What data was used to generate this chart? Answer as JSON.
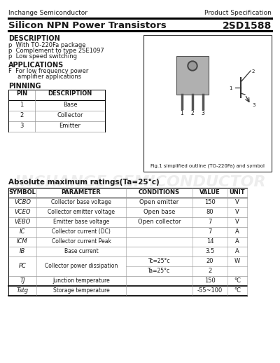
{
  "company": "Inchange Semiconductor",
  "spec_type": "Product Specification",
  "title": "Silicon NPN Power Transistors",
  "part_number": "2SD1588",
  "description_title": "DESCRIPTION",
  "description_items": [
    "p  With TO-220Fa package",
    "p  Complement to type 2SE1097",
    "p  Low speed switching"
  ],
  "applications_title": "APPLICATIONS",
  "applications_items": [
    "F  For low frequency power",
    "     amplifier applications"
  ],
  "pinning_title": "PINNING",
  "pin_headers": [
    "PIN",
    "DESCRIPTION"
  ],
  "pin_rows": [
    [
      "1",
      "Base"
    ],
    [
      "2",
      "Collector"
    ],
    [
      "3",
      "Emitter"
    ]
  ],
  "fig_caption": "Fig.1 simplified outline (TO-220Fa) and symbol",
  "abs_title": "Absolute maximum ratings(Ta=25°c)",
  "abs_headers": [
    "SYMBOL",
    "PARAMETER",
    "CONDITIONS",
    "VALUE",
    "UNIT"
  ],
  "abs_rows": [
    [
      "VCBO",
      "Collector base voltage",
      "Open emitter",
      "150",
      "V"
    ],
    [
      "VCEO",
      "Collector emitter voltage",
      "Open base",
      "80",
      "V"
    ],
    [
      "VEBO",
      "Emitter base voltage",
      "Open collector",
      "7",
      "V"
    ],
    [
      "IC",
      "Collector current (DC)",
      "",
      "7",
      "A"
    ],
    [
      "ICM",
      "Collector current Peak",
      "",
      "14",
      "A"
    ],
    [
      "IB",
      "Base current",
      "",
      "3.5",
      "A"
    ],
    [
      "PC",
      "Collector power dissipation",
      "Tc=25°c",
      "20",
      "W"
    ],
    [
      "",
      "",
      "Ta=25°c",
      "2",
      ""
    ],
    [
      "TJ",
      "Junction temperature",
      "",
      "150",
      "°C"
    ],
    [
      "Tstg",
      "Storage temperature",
      "",
      "-55~100",
      "°C"
    ]
  ],
  "watermark": "INCHANGE SEMICONDUCTOR",
  "bg_color": "#ffffff",
  "text_color": "#1a1a1a",
  "bold_line_color": "#000000",
  "light_line_color": "#999999"
}
